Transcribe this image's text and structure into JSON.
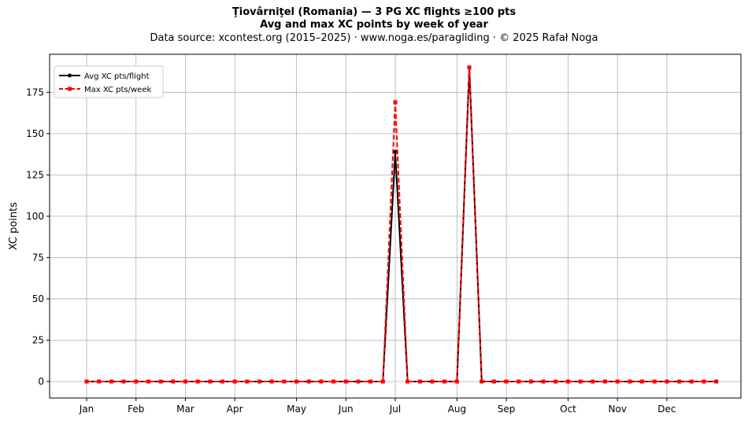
{
  "chart_data": {
    "type": "line",
    "title": "Ţiovârniţel (Romania)  —  3 PG XC flights ≥100 pts",
    "subtitle": "Avg and max XC points by week of year",
    "source": "Data source: xcontest.org (2015–2025)  ·  www.noga.es/paragliding  ·  © 2025 Rafał Noga",
    "xlabel": "",
    "ylabel": "XC points",
    "ylim": [
      -10,
      198
    ],
    "yticks": [
      0,
      25,
      50,
      75,
      100,
      125,
      150,
      175
    ],
    "month_ticks": [
      {
        "label": "Jan",
        "week": 1
      },
      {
        "label": "Feb",
        "week": 5
      },
      {
        "label": "Mar",
        "week": 9
      },
      {
        "label": "Apr",
        "week": 13
      },
      {
        "label": "May",
        "week": 18
      },
      {
        "label": "Jun",
        "week": 22
      },
      {
        "label": "Jul",
        "week": 26
      },
      {
        "label": "Aug",
        "week": 31
      },
      {
        "label": "Sep",
        "week": 35
      },
      {
        "label": "Oct",
        "week": 40
      },
      {
        "label": "Nov",
        "week": 44
      },
      {
        "label": "Dec",
        "week": 48
      }
    ],
    "x": [
      1,
      2,
      3,
      4,
      5,
      6,
      7,
      8,
      9,
      10,
      11,
      12,
      13,
      14,
      15,
      16,
      17,
      18,
      19,
      20,
      21,
      22,
      23,
      24,
      25,
      26,
      27,
      28,
      29,
      30,
      31,
      32,
      33,
      34,
      35,
      36,
      37,
      38,
      39,
      40,
      41,
      42,
      43,
      44,
      45,
      46,
      47,
      48,
      49,
      50,
      51,
      52
    ],
    "series": [
      {
        "name": "Avg XC pts/flight",
        "color": "#000000",
        "style": "solid",
        "values": [
          0,
          0,
          0,
          0,
          0,
          0,
          0,
          0,
          0,
          0,
          0,
          0,
          0,
          0,
          0,
          0,
          0,
          0,
          0,
          0,
          0,
          0,
          0,
          0,
          0,
          139,
          0,
          0,
          0,
          0,
          0,
          190,
          0,
          0,
          0,
          0,
          0,
          0,
          0,
          0,
          0,
          0,
          0,
          0,
          0,
          0,
          0,
          0,
          0,
          0,
          0,
          0
        ]
      },
      {
        "name": "Max XC pts/week",
        "color": "#ff0000",
        "style": "dashed",
        "values": [
          0,
          0,
          0,
          0,
          0,
          0,
          0,
          0,
          0,
          0,
          0,
          0,
          0,
          0,
          0,
          0,
          0,
          0,
          0,
          0,
          0,
          0,
          0,
          0,
          0,
          169,
          0,
          0,
          0,
          0,
          0,
          190,
          0,
          0,
          0,
          0,
          0,
          0,
          0,
          0,
          0,
          0,
          0,
          0,
          0,
          0,
          0,
          0,
          0,
          0,
          0,
          0
        ]
      }
    ],
    "grid": true,
    "legend_position": "top-left"
  }
}
